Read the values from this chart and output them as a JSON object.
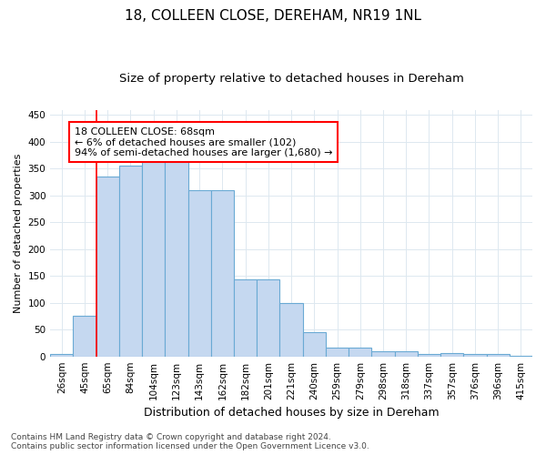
{
  "title": "18, COLLEEN CLOSE, DEREHAM, NR19 1NL",
  "subtitle": "Size of property relative to detached houses in Dereham",
  "xlabel": "Distribution of detached houses by size in Dereham",
  "ylabel": "Number of detached properties",
  "categories": [
    "26sqm",
    "45sqm",
    "65sqm",
    "84sqm",
    "104sqm",
    "123sqm",
    "143sqm",
    "162sqm",
    "182sqm",
    "201sqm",
    "221sqm",
    "240sqm",
    "259sqm",
    "279sqm",
    "298sqm",
    "318sqm",
    "337sqm",
    "357sqm",
    "376sqm",
    "396sqm",
    "415sqm"
  ],
  "values": [
    5,
    75,
    335,
    355,
    370,
    370,
    310,
    310,
    143,
    143,
    99,
    45,
    16,
    16,
    10,
    10,
    5,
    6,
    5,
    5,
    2
  ],
  "bar_color": "#c5d8f0",
  "bar_edge_color": "#6aaad4",
  "red_line_x": 1.5,
  "annotation_box_text": "18 COLLEEN CLOSE: 68sqm\n← 6% of detached houses are smaller (102)\n94% of semi-detached houses are larger (1,680) →",
  "footer": "Contains HM Land Registry data © Crown copyright and database right 2024.\nContains public sector information licensed under the Open Government Licence v3.0.",
  "ylim": [
    0,
    460
  ],
  "yticks": [
    0,
    50,
    100,
    150,
    200,
    250,
    300,
    350,
    400,
    450
  ],
  "title_fontsize": 11,
  "subtitle_fontsize": 9.5,
  "xlabel_fontsize": 9,
  "ylabel_fontsize": 8,
  "tick_fontsize": 7.5,
  "footer_fontsize": 6.5,
  "annotation_fontsize": 8
}
